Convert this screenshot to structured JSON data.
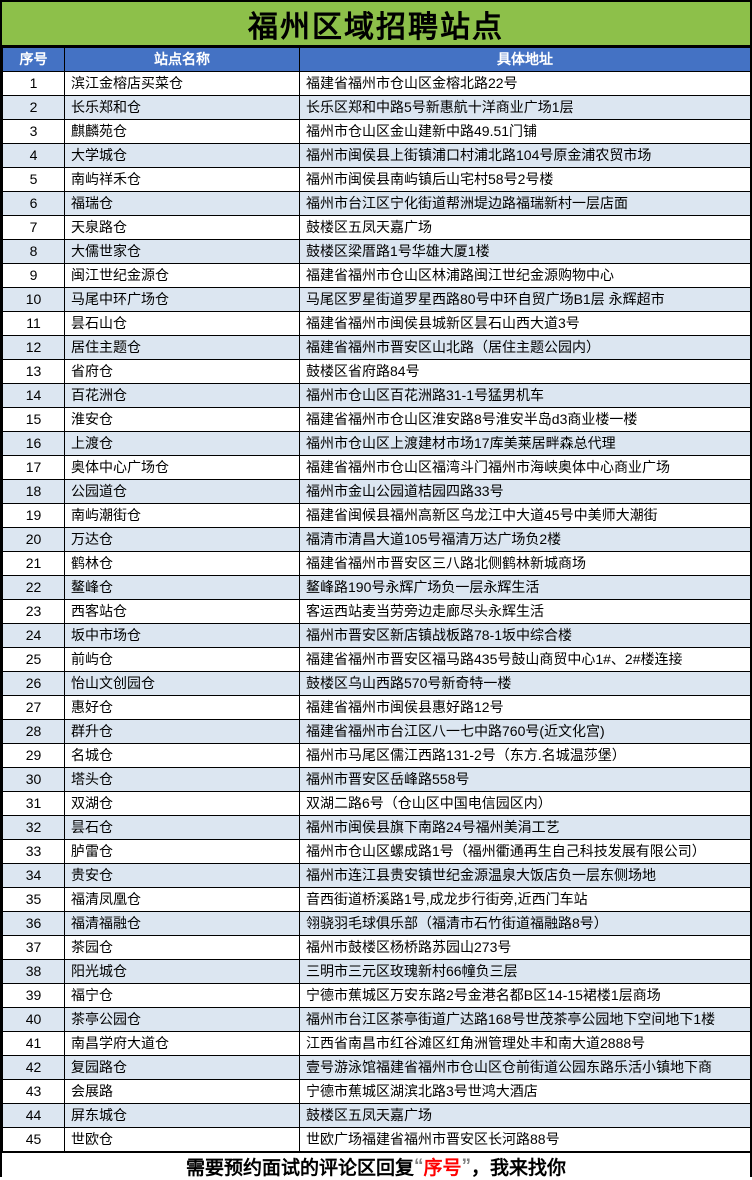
{
  "title": "福州区域招聘站点",
  "colors": {
    "title_bg": "#8DC04A",
    "header_bg": "#4472C4",
    "row_alt_bg": "#DCE6F1",
    "highlight_red": "#FF0000",
    "quote_gray": "#808080"
  },
  "table": {
    "headers": [
      "序号",
      "站点名称",
      "具体地址"
    ],
    "rows": [
      {
        "no": "1",
        "name": "滨江金榕店买菜仓",
        "address": "福建省福州市仓山区金榕北路22号"
      },
      {
        "no": "2",
        "name": "长乐郑和仓",
        "address": "长乐区郑和中路5号新惠航十洋商业广场1层"
      },
      {
        "no": "3",
        "name": "麒麟苑仓",
        "address": "福州市仓山区金山建新中路49.51门铺"
      },
      {
        "no": "4",
        "name": "大学城仓",
        "address": "福州市闽侯县上街镇浦口村浦北路104号原金浦农贸市场"
      },
      {
        "no": "5",
        "name": "南屿祥禾仓",
        "address": "福州市闽侯县南屿镇后山宅村58号2号楼"
      },
      {
        "no": "6",
        "name": "福瑞仓",
        "address": "福州市台江区宁化街道帮洲堤边路福瑞新村一层店面"
      },
      {
        "no": "7",
        "name": "天泉路仓",
        "address": "鼓楼区五凤天嘉广场"
      },
      {
        "no": "8",
        "name": "大儒世家仓",
        "address": "鼓楼区梁厝路1号华雄大厦1楼"
      },
      {
        "no": "9",
        "name": "闽江世纪金源仓",
        "address": "福建省福州市仓山区林浦路闽江世纪金源购物中心"
      },
      {
        "no": "10",
        "name": "马尾中环广场仓",
        "address": "马尾区罗星街道罗星西路80号中环自贸广场B1层  永辉超市"
      },
      {
        "no": "11",
        "name": "昙石山仓",
        "address": "福建省福州市闽侯县城新区昙石山西大道3号"
      },
      {
        "no": "12",
        "name": "居住主题仓",
        "address": "福建省福州市晋安区山北路（居住主题公园内）"
      },
      {
        "no": "13",
        "name": "省府仓",
        "address": "鼓楼区省府路84号"
      },
      {
        "no": "14",
        "name": "百花洲仓",
        "address": "福州市仓山区百花洲路31-1号猛男机车"
      },
      {
        "no": "15",
        "name": "淮安仓",
        "address": "福建省福州市仓山区淮安路8号淮安半岛d3商业楼一楼"
      },
      {
        "no": "16",
        "name": "上渡仓",
        "address": "福州市仓山区上渡建材市场17库美莱居畔森总代理"
      },
      {
        "no": "17",
        "name": "奥体中心广场仓",
        "address": "福建省福州市仓山区福湾斗门福州市海峡奥体中心商业广场"
      },
      {
        "no": "18",
        "name": "公园道仓",
        "address": "福州市金山公园道桔园四路33号"
      },
      {
        "no": "19",
        "name": "南屿潮街仓",
        "address": "福建省闽候县福州高新区乌龙江中大道45号中美师大潮街"
      },
      {
        "no": "20",
        "name": "万达仓",
        "address": "福清市清昌大道105号福清万达广场负2楼"
      },
      {
        "no": "21",
        "name": "鹤林仓",
        "address": "福建省福州市晋安区三八路北侧鹤林新城商场"
      },
      {
        "no": "22",
        "name": "鳌峰仓",
        "address": "鳌峰路190号永辉广场负一层永辉生活"
      },
      {
        "no": "23",
        "name": "西客站仓",
        "address": "客运西站麦当劳旁边走廊尽头永辉生活"
      },
      {
        "no": "24",
        "name": "坂中市场仓",
        "address": "福州市晋安区新店镇战板路78-1坂中综合楼"
      },
      {
        "no": "25",
        "name": "前屿仓",
        "address": "福建省福州市晋安区福马路435号鼓山商贸中心1#、2#楼连接"
      },
      {
        "no": "26",
        "name": "怡山文创园仓",
        "address": "鼓楼区乌山西路570号新奇特一楼"
      },
      {
        "no": "27",
        "name": "惠好仓",
        "address": "福建省福州市闽侯县惠好路12号"
      },
      {
        "no": "28",
        "name": "群升仓",
        "address": "福建省福州市台江区八一七中路760号(近文化宫)"
      },
      {
        "no": "29",
        "name": "名城仓",
        "address": "福州市马尾区儒江西路131-2号（东方.名城温莎堡）"
      },
      {
        "no": "30",
        "name": "塔头仓",
        "address": "福州市晋安区岳峰路558号"
      },
      {
        "no": "31",
        "name": "双湖仓",
        "address": "双湖二路6号（仓山区中国电信园区内）"
      },
      {
        "no": "32",
        "name": "昙石仓",
        "address": "福州市闽侯县旗下南路24号福州美涓工艺"
      },
      {
        "no": "33",
        "name": "胪雷仓",
        "address": "福州市仓山区螺成路1号（福州衢通再生自己科技发展有限公司）"
      },
      {
        "no": "34",
        "name": "贵安仓",
        "address": "福州市连江县贵安镇世纪金源温泉大饭店负一层东侧场地"
      },
      {
        "no": "35",
        "name": "福清凤凰仓",
        "address": "音西街道桥溪路1号,成龙步行街旁,近西门车站"
      },
      {
        "no": "36",
        "name": "福清福融仓",
        "address": "翎骁羽毛球俱乐部（福清市石竹街道福融路8号）"
      },
      {
        "no": "37",
        "name": "茶园仓",
        "address": "福州市鼓楼区杨桥路苏园山273号"
      },
      {
        "no": "38",
        "name": "阳光城仓",
        "address": "三明市三元区玫瑰新村66幢负三层"
      },
      {
        "no": "39",
        "name": "福宁仓",
        "address": "宁德市蕉城区万安东路2号金港名都B区14-15裙楼1层商场"
      },
      {
        "no": "40",
        "name": "茶亭公园仓",
        "address": "福州市台江区茶亭街道广达路168号世茂茶亭公园地下空间地下1楼"
      },
      {
        "no": "41",
        "name": "南昌学府大道仓",
        "address": "江西省南昌市红谷滩区红角洲管理处丰和南大道2888号"
      },
      {
        "no": "42",
        "name": "复园路仓",
        "address": "壹号游泳馆福建省福州市仓山区仓前街道公园东路乐活小镇地下商"
      },
      {
        "no": "43",
        "name": "会展路",
        "address": "宁德市蕉城区湖滨北路3号世鸿大酒店"
      },
      {
        "no": "44",
        "name": "屏东城仓",
        "address": "鼓楼区五凤天嘉广场"
      },
      {
        "no": "45",
        "name": "世欧仓",
        "address": "世欧广场福建省福州市晋安区长河路88号"
      }
    ]
  },
  "footer": {
    "prefix": "需要预约面试的评论区回复",
    "quote_open": "“",
    "highlight": "序号",
    "quote_close": "”",
    "suffix": "，我来找你"
  }
}
